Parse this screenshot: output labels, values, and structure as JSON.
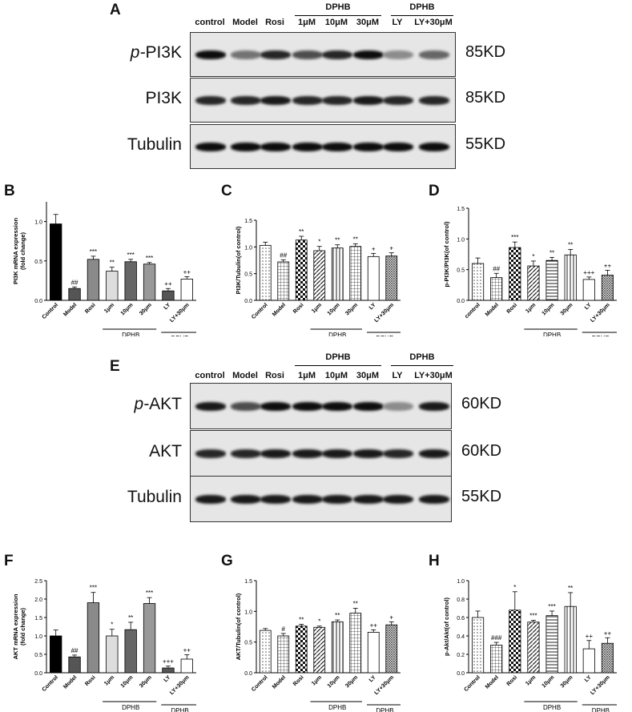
{
  "panels": {
    "A": "A",
    "B": "B",
    "C": "C",
    "D": "D",
    "E": "E",
    "F": "F",
    "G": "G",
    "H": "H"
  },
  "blotA": {
    "group_header": "DPHB",
    "group_header2": "DPHB",
    "lanes": [
      "control",
      "Model",
      "Rosi",
      "1μM",
      "10μM",
      "30μM",
      "LY",
      "LY+30μM"
    ],
    "rows": [
      {
        "label_prefix": "p-",
        "label": "PI3K",
        "kd": "85KD",
        "intensity": [
          0.95,
          0.55,
          0.85,
          0.7,
          0.85,
          0.95,
          0.45,
          0.6
        ]
      },
      {
        "label_prefix": "",
        "label": "PI3K",
        "kd": "85KD",
        "intensity": [
          0.85,
          0.85,
          0.9,
          0.85,
          0.85,
          0.9,
          0.85,
          0.85
        ]
      },
      {
        "label_prefix": "",
        "label": "Tubulin",
        "kd": "55KD",
        "intensity": [
          0.95,
          0.95,
          0.95,
          0.95,
          0.95,
          0.95,
          0.95,
          0.95
        ]
      }
    ]
  },
  "blotE": {
    "group_header": "DPHB",
    "group_header2": "DPHB",
    "lanes": [
      "control",
      "Model",
      "Rosi",
      "1μM",
      "10μM",
      "30μM",
      "LY",
      "LY+30μM"
    ],
    "rows": [
      {
        "label_prefix": "p-",
        "label": "AKT",
        "kd": "60KD",
        "intensity": [
          0.9,
          0.7,
          0.95,
          0.95,
          0.95,
          0.95,
          0.45,
          0.9
        ]
      },
      {
        "label_prefix": "",
        "label": "AKT",
        "kd": "60KD",
        "intensity": [
          0.85,
          0.85,
          0.9,
          0.9,
          0.9,
          0.9,
          0.85,
          0.9
        ]
      },
      {
        "label_prefix": "",
        "label": "Tubulin",
        "kd": "55KD",
        "intensity": [
          0.9,
          0.9,
          0.9,
          0.9,
          0.9,
          0.9,
          0.9,
          0.9
        ]
      }
    ]
  },
  "chart_data": [
    {
      "id": "B",
      "type": "bar",
      "ylabel": "PI3K mRNA expression\n(fold change)",
      "ylim": [
        0,
        1.25
      ],
      "yticks": [
        "0.0",
        "0.5",
        "1.0"
      ],
      "ytick_vals": [
        0,
        0.5,
        1.0
      ],
      "categories": [
        "Control",
        "Model",
        "Rosi",
        "1μm",
        "10μm",
        "30μm",
        "LY",
        "LY+30μm"
      ],
      "values": [
        0.97,
        0.15,
        0.52,
        0.37,
        0.49,
        0.46,
        0.12,
        0.27
      ],
      "errors": [
        0.12,
        0.02,
        0.04,
        0.05,
        0.03,
        0.02,
        0.03,
        0.03
      ],
      "sig": [
        "",
        "##",
        "***",
        "**",
        "***",
        "***",
        "++",
        "++"
      ],
      "fills": [
        "black",
        "#555",
        "#8a8a8a",
        "#ddd",
        "#666",
        "#999",
        "#555",
        "#fff"
      ],
      "group_labels": [
        "DPHB",
        "DPHB"
      ]
    },
    {
      "id": "C",
      "type": "bar",
      "ylabel": "PI3K/Tubulin(of control)",
      "ylim": [
        0,
        1.5
      ],
      "yticks": [
        "0.0",
        "0.5",
        "1.0",
        "1.5"
      ],
      "ytick_vals": [
        0,
        0.5,
        1.0,
        1.5
      ],
      "categories": [
        "Control",
        "Model",
        "Rosi",
        "1μm",
        "10μm",
        "30μm",
        "LY",
        "LY+30μm"
      ],
      "values": [
        1.03,
        0.72,
        1.13,
        0.93,
        0.98,
        1.01,
        0.82,
        0.83
      ],
      "errors": [
        0.06,
        0.04,
        0.07,
        0.08,
        0.06,
        0.05,
        0.06,
        0.06
      ],
      "sig": [
        "",
        "##",
        "**",
        "*",
        "**",
        "**",
        "+",
        "+"
      ],
      "fills": [
        "pat-dots",
        "pat-grid",
        "pat-check",
        "pat-diag",
        "pat-vert",
        "pat-grid",
        "#fff",
        "pat-fine"
      ],
      "group_labels": [
        "DPHB",
        "DPHB"
      ]
    },
    {
      "id": "D",
      "type": "bar",
      "ylabel": "p-PI3K/PI3K(of control)",
      "ylim": [
        0,
        1.5
      ],
      "yticks": [
        "0.0",
        "0.5",
        "1.0",
        "1.5"
      ],
      "ytick_vals": [
        0,
        0.5,
        1.0,
        1.5
      ],
      "categories": [
        "control",
        "Model",
        "Rosi",
        "1μm",
        "10μm",
        "30μm",
        "LY",
        "LY+30μm"
      ],
      "values": [
        0.6,
        0.37,
        0.86,
        0.56,
        0.65,
        0.74,
        0.34,
        0.41
      ],
      "errors": [
        0.09,
        0.07,
        0.09,
        0.08,
        0.05,
        0.09,
        0.04,
        0.08
      ],
      "sig": [
        "",
        "##",
        "***",
        "*",
        "**",
        "**",
        "+++",
        "++"
      ],
      "fills": [
        "pat-dots",
        "pat-grid",
        "pat-check",
        "pat-diag",
        "pat-hstripe",
        "pat-vert",
        "#fff",
        "pat-fine"
      ],
      "group_labels": [
        "DPHB",
        "DPHB"
      ]
    },
    {
      "id": "F",
      "type": "bar",
      "ylabel": "AKT mRNA expression\n(fold change)",
      "ylim": [
        0,
        2.5
      ],
      "yticks": [
        "0.0",
        "0.5",
        "1.0",
        "1.5",
        "2.0",
        "2.5"
      ],
      "ytick_vals": [
        0,
        0.5,
        1.0,
        1.5,
        2.0,
        2.5
      ],
      "categories": [
        "Control",
        "Model",
        "Rosi",
        "1μm",
        "10μm",
        "30μm",
        "LY",
        "LY+30μm"
      ],
      "values": [
        1.0,
        0.43,
        1.9,
        1.0,
        1.17,
        1.88,
        0.13,
        0.37
      ],
      "errors": [
        0.16,
        0.05,
        0.28,
        0.18,
        0.2,
        0.16,
        0.05,
        0.12
      ],
      "sig": [
        "",
        "##",
        "***",
        "*",
        "**",
        "***",
        "+++",
        "++"
      ],
      "fills": [
        "black",
        "#555",
        "#8a8a8a",
        "#ddd",
        "#666",
        "#999",
        "#555",
        "#fff"
      ],
      "group_labels": [
        "DPHB",
        "DPHB"
      ]
    },
    {
      "id": "G",
      "type": "bar",
      "ylabel": "AKT/Tubulin(of control)",
      "ylim": [
        0,
        1.5
      ],
      "yticks": [
        "0.0",
        "0.5",
        "1.0",
        "1.5"
      ],
      "ytick_vals": [
        0,
        0.5,
        1.0,
        1.5
      ],
      "categories": [
        "Control",
        "Model",
        "Rosi",
        "1μm",
        "10μm",
        "30μm",
        "LY",
        "LY+30μm"
      ],
      "values": [
        0.69,
        0.6,
        0.76,
        0.74,
        0.83,
        0.97,
        0.66,
        0.78
      ],
      "errors": [
        0.03,
        0.04,
        0.03,
        0.02,
        0.03,
        0.08,
        0.04,
        0.05
      ],
      "sig": [
        "",
        "#",
        "**",
        "*",
        "**",
        "**",
        "++",
        "+"
      ],
      "fills": [
        "pat-dots",
        "pat-grid",
        "pat-check",
        "pat-diag",
        "pat-vert",
        "pat-grid",
        "#fff",
        "pat-fine"
      ],
      "group_labels": [
        "DPHB",
        "DPHB"
      ]
    },
    {
      "id": "H",
      "type": "bar",
      "ylabel": "p-Akt/Akt(of control)",
      "ylim": [
        0,
        1.0
      ],
      "yticks": [
        "0.0",
        "0.2",
        "0.4",
        "0.6",
        "0.8",
        "1.0"
      ],
      "ytick_vals": [
        0,
        0.2,
        0.4,
        0.6,
        0.8,
        1.0
      ],
      "categories": [
        "Control",
        "Model",
        "Rosi",
        "1μm",
        "10μm",
        "30μm",
        "LY",
        "LY+30μm"
      ],
      "values": [
        0.6,
        0.3,
        0.68,
        0.55,
        0.62,
        0.72,
        0.26,
        0.32
      ],
      "errors": [
        0.07,
        0.03,
        0.2,
        0.02,
        0.05,
        0.15,
        0.09,
        0.06
      ],
      "sig": [
        "",
        "###",
        "*",
        "***",
        "***",
        "**",
        "++",
        "++"
      ],
      "fills": [
        "pat-dots",
        "pat-grid",
        "pat-check",
        "pat-diag",
        "pat-hstripe",
        "pat-vert",
        "#fff",
        "pat-fine"
      ],
      "group_labels": [
        "DPHB",
        "DPHB"
      ]
    }
  ]
}
